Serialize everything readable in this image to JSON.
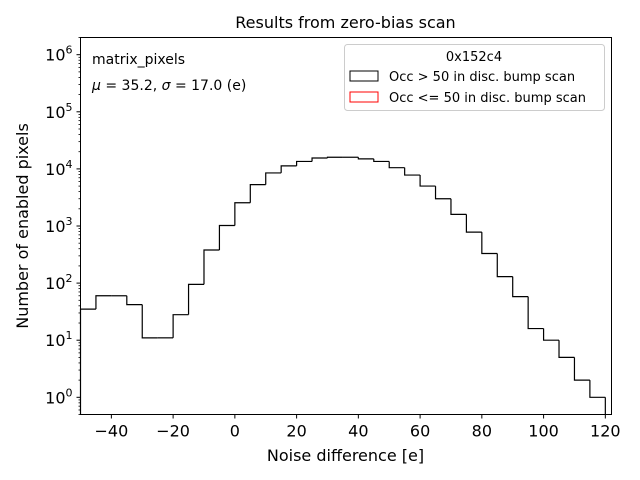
{
  "chart_data": {
    "type": "histogram",
    "title": "Results from zero-bias scan",
    "xlabel": "Noise difference [e]",
    "ylabel": "Number of enabled pixels",
    "yscale": "log",
    "xlim": [
      -50,
      122
    ],
    "ylim": [
      0.5,
      2000000
    ],
    "xticks": [
      -40,
      -20,
      0,
      20,
      40,
      60,
      80,
      100,
      120
    ],
    "xtick_labels": [
      "−40",
      "−20",
      "0",
      "20",
      "40",
      "60",
      "80",
      "100",
      "120"
    ],
    "yticks": [
      1,
      10,
      100,
      1000,
      10000,
      100000,
      1000000
    ],
    "ytick_exponents": [
      "0",
      "1",
      "2",
      "3",
      "4",
      "5",
      "6"
    ],
    "ytick_base": "10",
    "bin_edges": [
      -50,
      -45,
      -40,
      -35,
      -30,
      -25,
      -20,
      -15,
      -10,
      -5,
      0,
      5,
      10,
      15,
      20,
      25,
      30,
      35,
      40,
      45,
      50,
      55,
      60,
      65,
      70,
      75,
      80,
      85,
      90,
      95,
      100,
      105,
      110,
      115,
      120
    ],
    "series": [
      {
        "name": "Occ > 50 in disc. bump scan",
        "color": "#000000",
        "counts": [
          35,
          60,
          60,
          42,
          11,
          11,
          28,
          95,
          380,
          1020,
          2550,
          5300,
          8500,
          11300,
          13500,
          15500,
          16000,
          16000,
          15000,
          13500,
          10500,
          7800,
          5000,
          3000,
          1600,
          780,
          330,
          130,
          58,
          16,
          10,
          5,
          2,
          1
        ]
      },
      {
        "name": "Occ <= 50 in disc. bump scan",
        "color": "#ff0000",
        "counts": []
      }
    ],
    "legend": {
      "title": "0x152c4",
      "position": "top-right",
      "entries": [
        "Occ > 50 in disc. bump scan",
        "Occ <= 50 in disc. bump scan"
      ]
    },
    "annotations": {
      "line1": "matrix_pixels",
      "mu_symbol": "μ",
      "mu_value": " = 35.2, ",
      "sigma_symbol": "σ",
      "sigma_value": " = 17.0 (e)"
    }
  }
}
